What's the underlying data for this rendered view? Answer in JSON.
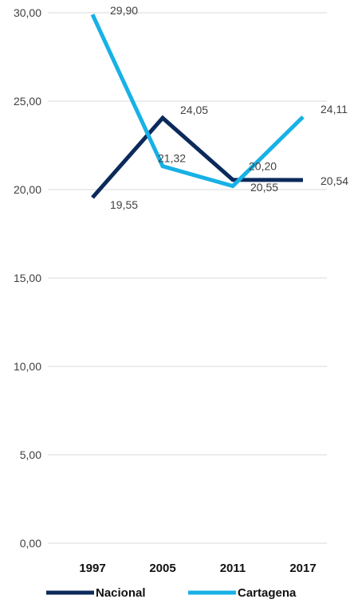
{
  "chart_data": {
    "type": "line",
    "categories": [
      "1997",
      "2005",
      "2011",
      "2017"
    ],
    "series": [
      {
        "name": "Nacional",
        "values": [
          19.55,
          24.05,
          20.55,
          20.54
        ],
        "color": "#0b2a5b",
        "labels": [
          "19,55",
          "24,05",
          "20,55",
          "20,54"
        ]
      },
      {
        "name": "Cartagena",
        "values": [
          29.9,
          21.32,
          20.2,
          24.11
        ],
        "color": "#17b1e6",
        "labels": [
          "29,90",
          "21,32",
          "20,20",
          "24,11"
        ]
      }
    ],
    "yticks": [
      "0,00",
      "5,00",
      "10,00",
      "15,00",
      "20,00",
      "25,00",
      "30,00"
    ],
    "ylim": [
      0,
      30
    ],
    "grid": true,
    "legend": "bottom"
  }
}
